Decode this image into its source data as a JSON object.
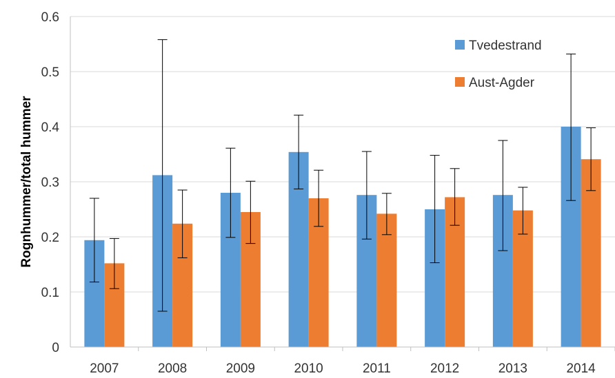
{
  "chart_data": {
    "type": "bar",
    "ylabel": "Rognhummer/total hummer",
    "xlabel": "",
    "ylim": [
      0,
      0.6
    ],
    "y_ticks": [
      "0",
      "0.1",
      "0.2",
      "0.3",
      "0.4",
      "0.5",
      "0.6"
    ],
    "categories": [
      "2007",
      "2008",
      "2009",
      "2010",
      "2011",
      "2012",
      "2013",
      "2014"
    ],
    "grid": "horizontal",
    "legend_position": "top-right",
    "error_bars": true,
    "series": [
      {
        "name": "Tvedestrand",
        "color": "#5b9bd5",
        "values": [
          0.194,
          0.312,
          0.28,
          0.354,
          0.276,
          0.25,
          0.276,
          0.4
        ],
        "err_low": [
          0.118,
          0.065,
          0.199,
          0.287,
          0.196,
          0.153,
          0.175,
          0.266
        ],
        "err_high": [
          0.27,
          0.558,
          0.361,
          0.421,
          0.355,
          0.348,
          0.375,
          0.532
        ]
      },
      {
        "name": "Aust-Agder",
        "color": "#ed7d31",
        "values": [
          0.152,
          0.224,
          0.245,
          0.27,
          0.242,
          0.272,
          0.248,
          0.341
        ],
        "err_low": [
          0.106,
          0.162,
          0.188,
          0.219,
          0.204,
          0.221,
          0.205,
          0.284
        ],
        "err_high": [
          0.197,
          0.285,
          0.301,
          0.321,
          0.279,
          0.324,
          0.29,
          0.398
        ]
      }
    ]
  }
}
